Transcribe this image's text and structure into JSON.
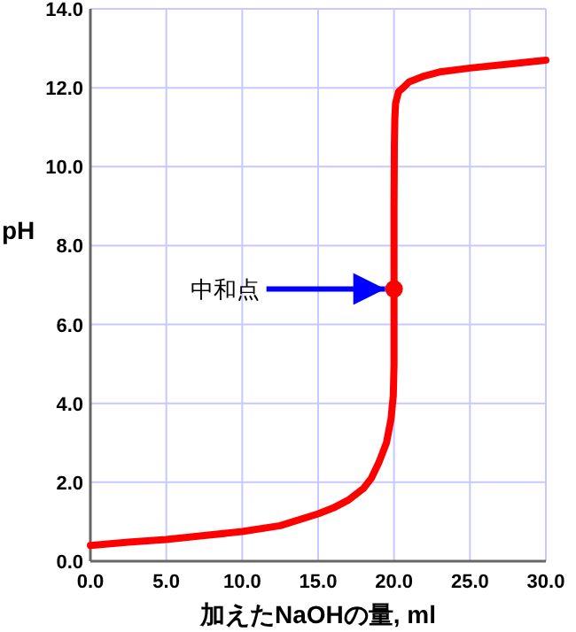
{
  "chart_data": {
    "type": "line",
    "xlabel": "加えたNaOHの量, ml",
    "ylabel": "pH",
    "xlim": [
      0,
      30
    ],
    "ylim": [
      0,
      14
    ],
    "xticks": [
      {
        "value": 0,
        "label": "0.0"
      },
      {
        "value": 5,
        "label": "5.0"
      },
      {
        "value": 10,
        "label": "10.0"
      },
      {
        "value": 15,
        "label": "15.0"
      },
      {
        "value": 20,
        "label": "20.0"
      },
      {
        "value": 25,
        "label": "25.0"
      },
      {
        "value": 30,
        "label": "30.0"
      }
    ],
    "yticks": [
      {
        "value": 0,
        "label": "0.0"
      },
      {
        "value": 2,
        "label": "2.0"
      },
      {
        "value": 4,
        "label": "4.0"
      },
      {
        "value": 6,
        "label": "6.0"
      },
      {
        "value": 8,
        "label": "8.0"
      },
      {
        "value": 10,
        "label": "10.0"
      },
      {
        "value": 12,
        "label": "12.0"
      },
      {
        "value": 14,
        "label": "14.0"
      }
    ],
    "grid": true,
    "marker": "none",
    "line_style": "solid",
    "series": [
      {
        "color": "#ff0000",
        "x": [
          0,
          2.5,
          5,
          7.5,
          10,
          12.5,
          15,
          16,
          17,
          18,
          18.5,
          19,
          19.5,
          19.8,
          19.95,
          20,
          20,
          20.02,
          20.05,
          20.1,
          20.3,
          20.6,
          21,
          22,
          23,
          25,
          27.5,
          30
        ],
        "values": [
          0.4,
          0.48,
          0.55,
          0.65,
          0.75,
          0.9,
          1.2,
          1.35,
          1.55,
          1.85,
          2.1,
          2.5,
          3.0,
          3.6,
          4.2,
          5.0,
          9.0,
          10.5,
          11.2,
          11.6,
          11.9,
          12.0,
          12.15,
          12.3,
          12.4,
          12.5,
          12.6,
          12.7
        ]
      },
      {
        "type": "scatter",
        "color": "#ff0000",
        "marker": "circle",
        "x": [
          20
        ],
        "values": [
          6.9
        ]
      }
    ],
    "annotations": [
      {
        "text": "中和点",
        "x": 20,
        "y": 6.9
      }
    ]
  }
}
